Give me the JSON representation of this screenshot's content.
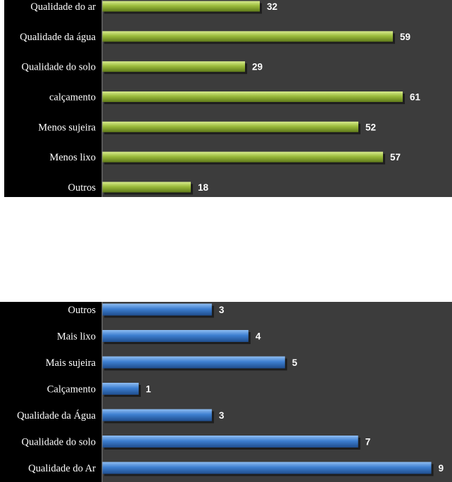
{
  "chart_data": [
    {
      "type": "bar",
      "orientation": "horizontal",
      "categories": [
        "Qualidade do ar",
        "Qualidade da água",
        "Qualidade do solo",
        "calçamento",
        "Menos sujeira",
        "Menos lixo",
        "Outros"
      ],
      "values": [
        32,
        59,
        29,
        61,
        52,
        57,
        18
      ],
      "xlim": [
        0,
        65
      ],
      "grid": false,
      "legend": "none",
      "bar_color": "#9bbb3c",
      "title": "",
      "xlabel": "",
      "ylabel": ""
    },
    {
      "type": "bar",
      "orientation": "horizontal",
      "categories": [
        "Outros",
        "Mais lixo",
        "Mais sujeira",
        "Calçamento",
        "Qualidade da Água",
        "Qualidade do solo",
        "Qualidade do Ar"
      ],
      "values": [
        3,
        4,
        5,
        1,
        3,
        7,
        9
      ],
      "xlim": [
        0,
        9.2
      ],
      "grid": false,
      "legend": "none",
      "bar_color": "#3d7fd0",
      "title": "",
      "xlabel": "",
      "ylabel": ""
    }
  ]
}
